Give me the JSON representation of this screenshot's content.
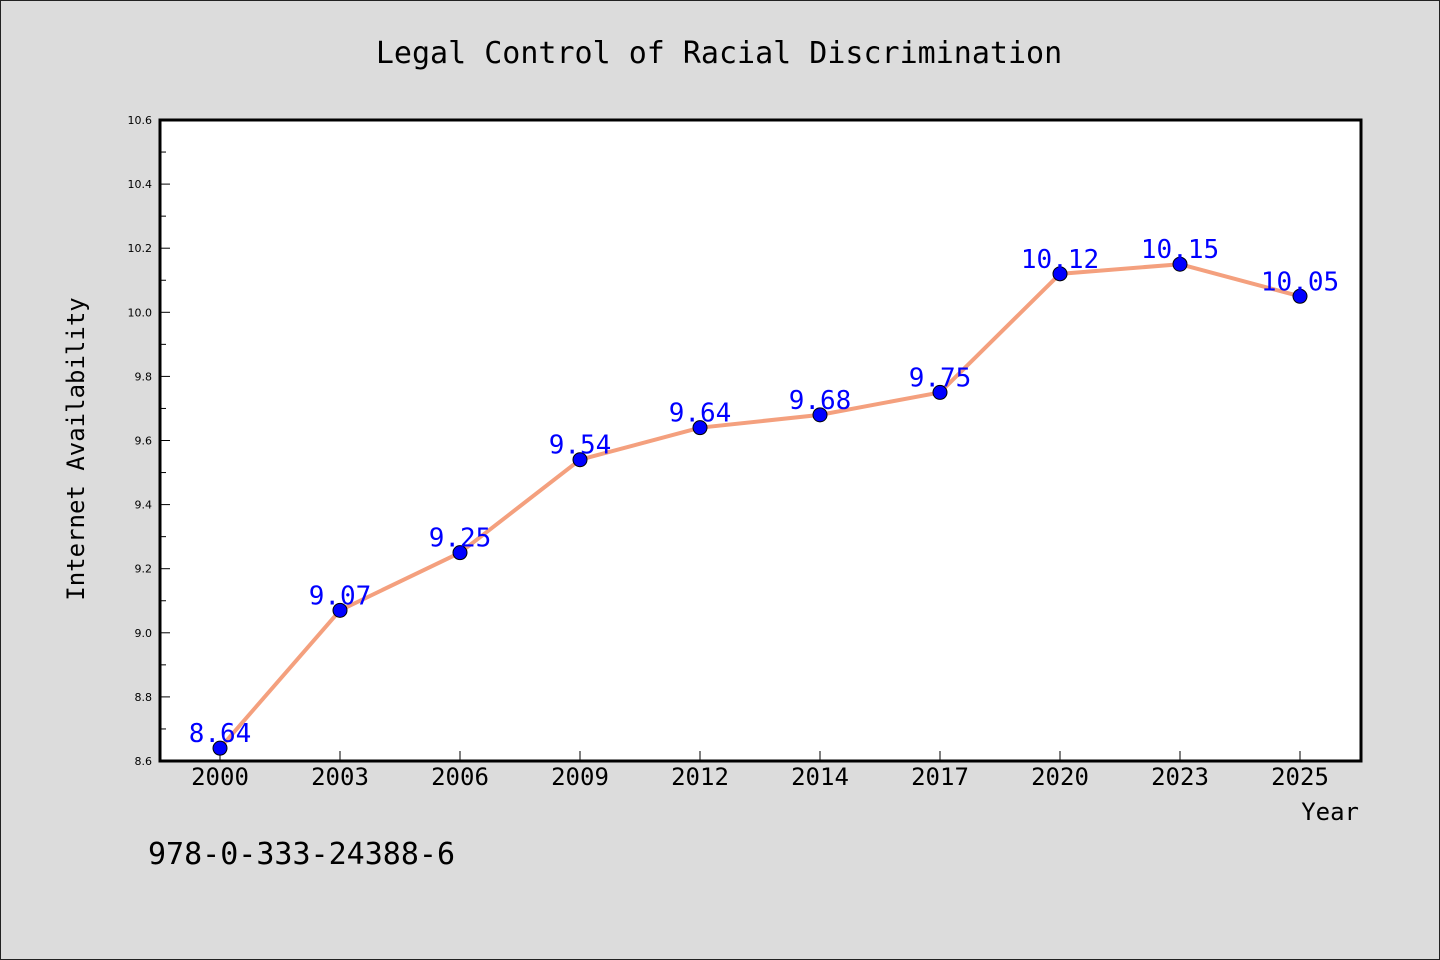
{
  "chart_data": {
    "type": "line",
    "title": "Legal Control of Racial Discrimination",
    "xlabel": "Year",
    "ylabel": "Internet Availability",
    "categories": [
      "2000",
      "2003",
      "2006",
      "2009",
      "2012",
      "2014",
      "2017",
      "2020",
      "2023",
      "2025"
    ],
    "series": [
      {
        "values": [
          8.64,
          9.07,
          9.25,
          9.54,
          9.64,
          9.68,
          9.75,
          10.12,
          10.15,
          10.05
        ],
        "labels": [
          "8.64",
          "9.07",
          "9.25",
          "9.54",
          "9.64",
          "9.68",
          "9.75",
          "10.12",
          "10.15",
          "10.05"
        ],
        "line_color": "#f4a07e",
        "marker_color": "#0000ff",
        "label_color": "#0000ff"
      }
    ],
    "ylim": [
      8.6,
      10.6
    ],
    "yticks": [
      "8.6",
      "8.8",
      "9.0",
      "9.2",
      "9.4",
      "9.6",
      "9.8",
      "10.0",
      "10.2",
      "10.4",
      "10.6"
    ],
    "grid": false,
    "legend": "none"
  },
  "footer_text": "978-0-333-24388-6",
  "colors": {
    "background": "#dcdcdc",
    "plot_background": "#ffffff",
    "axis": "#000000"
  }
}
